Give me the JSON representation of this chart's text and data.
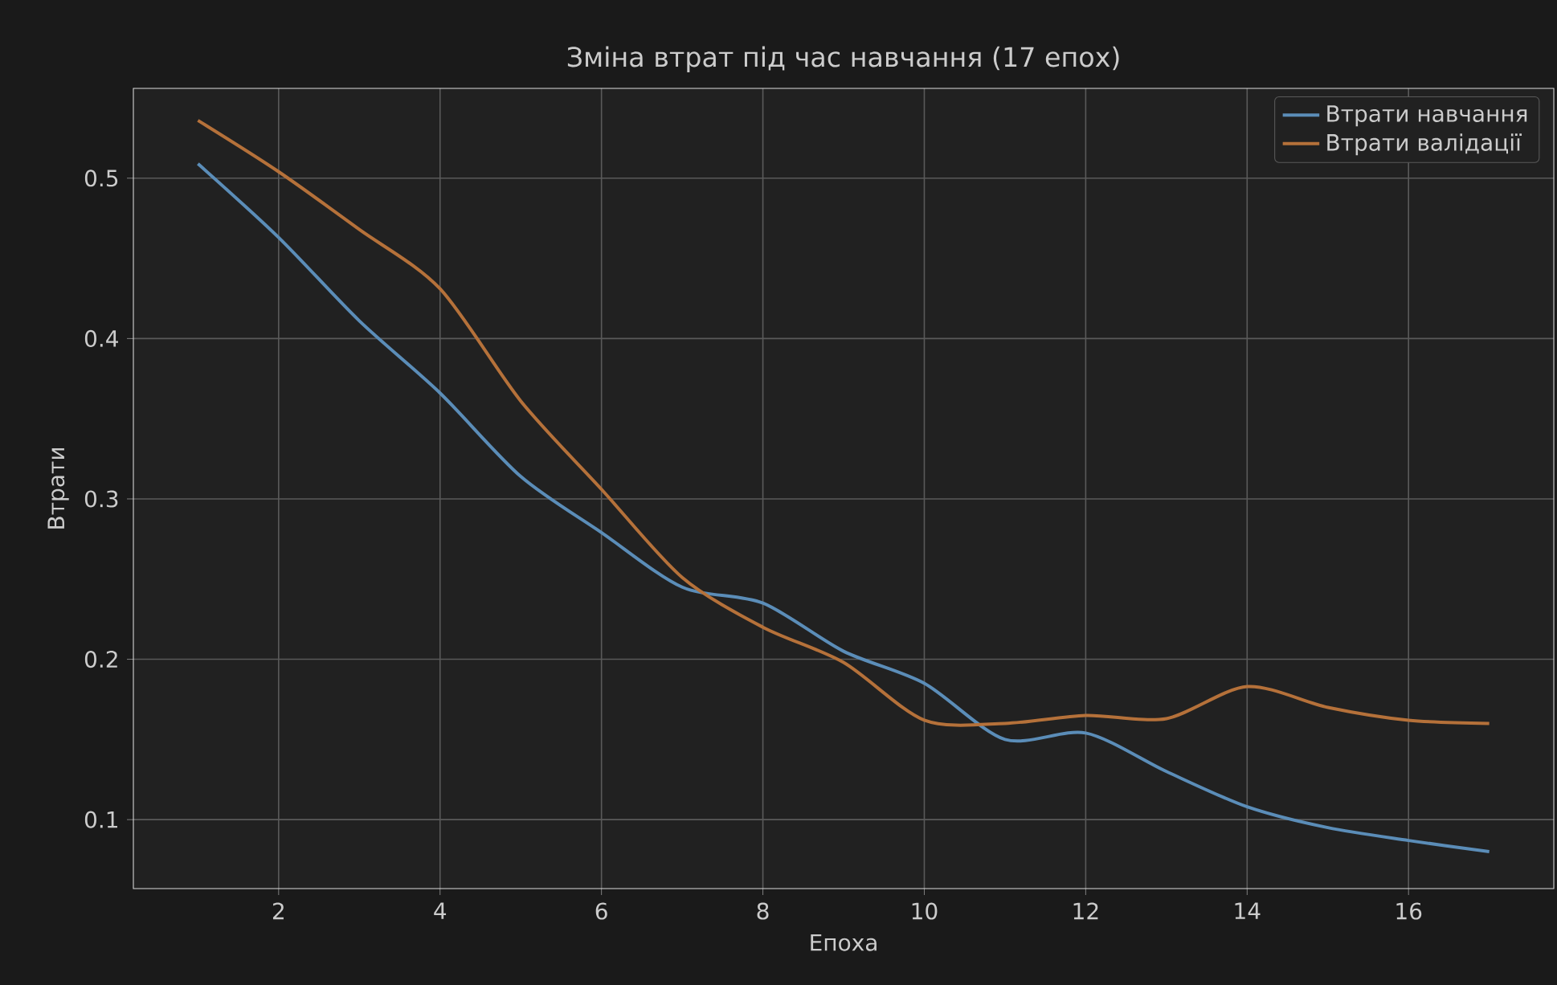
{
  "chart_data": {
    "type": "line",
    "title": "Зміна втрат під час навчання (17 епох)",
    "xlabel": "Епоха",
    "ylabel": "Втрати",
    "x": [
      1,
      2,
      3,
      4,
      5,
      6,
      7,
      8,
      9,
      10,
      11,
      12,
      13,
      14,
      15,
      16,
      17
    ],
    "series": [
      {
        "name": "Втрати навчання",
        "color": "#5b8db8",
        "values": [
          0.509,
          0.463,
          0.411,
          0.366,
          0.314,
          0.279,
          0.245,
          0.235,
          0.205,
          0.185,
          0.15,
          0.154,
          0.13,
          0.108,
          0.095,
          0.087,
          0.08
        ]
      },
      {
        "name": "Втрати валідації",
        "color": "#b5713a",
        "values": [
          0.536,
          0.504,
          0.468,
          0.431,
          0.361,
          0.306,
          0.251,
          0.22,
          0.198,
          0.162,
          0.16,
          0.165,
          0.163,
          0.183,
          0.17,
          0.162,
          0.16
        ]
      }
    ],
    "xlim": [
      0.2,
      17.8
    ],
    "ylim": [
      0.057,
      0.556
    ],
    "xticks": [
      2,
      4,
      6,
      8,
      10,
      12,
      14,
      16
    ],
    "yticks": [
      0.1,
      0.2,
      0.3,
      0.4,
      0.5
    ],
    "grid": true,
    "legend": "top right",
    "marker": "none",
    "line_style": "solid"
  }
}
